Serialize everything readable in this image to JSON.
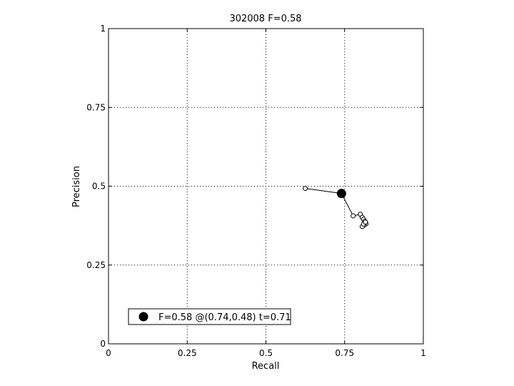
{
  "chart_data": {
    "type": "line",
    "title": "302008 F=0.58",
    "xlabel": "Recall",
    "ylabel": "Precision",
    "xlim": [
      0,
      1
    ],
    "ylim": [
      0,
      1
    ],
    "grid": true,
    "legend_position": "bottom-left",
    "x_ticks": [
      0,
      0.25,
      0.5,
      0.75,
      1
    ],
    "x_tick_labels": [
      "0",
      "0.25",
      "0.5",
      "0.75",
      "1"
    ],
    "y_ticks": [
      0,
      0.25,
      0.5,
      0.75,
      1
    ],
    "y_tick_labels": [
      "0",
      "0.25",
      "0.5",
      "0.75",
      "1"
    ],
    "series": [
      {
        "x": [
          0.625,
          0.74,
          0.777,
          0.8,
          0.806,
          0.81,
          0.814,
          0.818,
          0.812,
          0.806,
          0.81,
          0.816
        ],
        "y": [
          0.493,
          0.477,
          0.406,
          0.411,
          0.401,
          0.395,
          0.389,
          0.381,
          0.377,
          0.372,
          0.38,
          0.386
        ]
      }
    ],
    "best_point": {
      "x": 0.74,
      "y": 0.477
    },
    "legend": [
      {
        "label": "F=0.58 @(0.74,0.48) t=0.71",
        "marker": "filled-circle"
      }
    ]
  }
}
